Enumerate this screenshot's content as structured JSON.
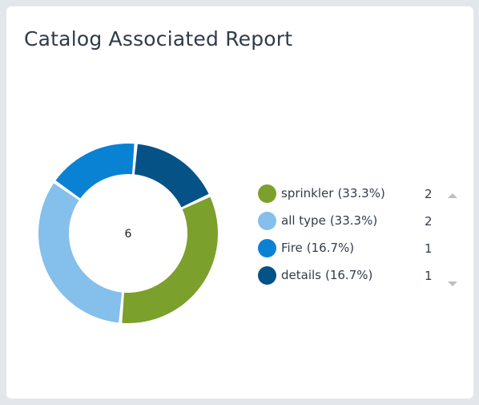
{
  "card": {
    "title": "Catalog Associated Report"
  },
  "chart_data": {
    "type": "pie",
    "title": "Catalog Associated Report",
    "center_label": "6",
    "slices": [
      {
        "label": "sprinkler",
        "percent_label": "(33.3%)",
        "value": 2,
        "color": "#7ca02c"
      },
      {
        "label": "all type",
        "percent_label": "(33.3%)",
        "value": 2,
        "color": "#85bfeb"
      },
      {
        "label": "Fire",
        "percent_label": "(16.7%)",
        "value": 1,
        "color": "#0a82d4"
      },
      {
        "label": "details",
        "percent_label": "(16.7%)",
        "value": 1,
        "color": "#055287"
      }
    ],
    "legend_placement": "right"
  },
  "icons": {
    "scroll_up": "caret-up-icon",
    "scroll_down": "caret-down-icon"
  }
}
